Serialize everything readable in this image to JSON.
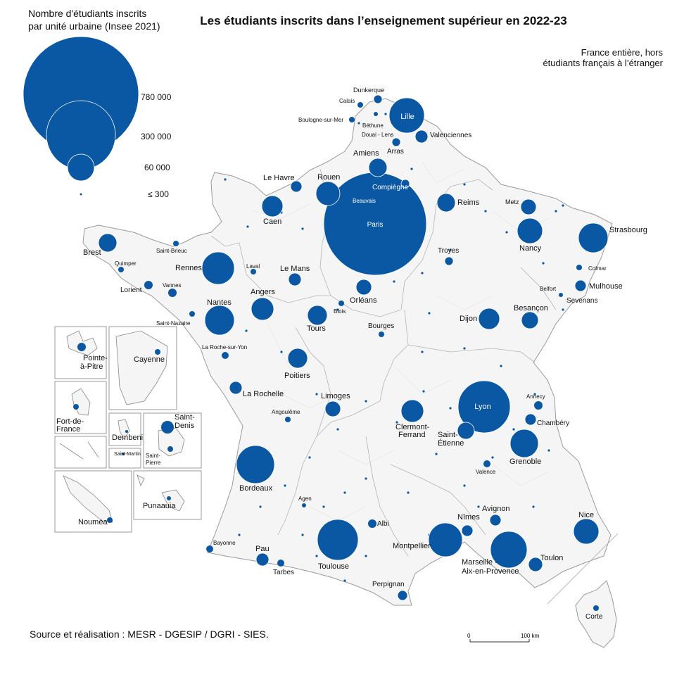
{
  "title": "Les étudiants inscrits dans l’enseignement supérieur en 2022-23",
  "scope_note": [
    "France entière, hors",
    "étudiants français à l’étranger"
  ],
  "legend": {
    "title_lines": [
      "Nombre d'étudiants inscrits",
      "par unité urbaine (Insee 2021)"
    ],
    "values": [
      "780 000",
      "300 000",
      "60 000",
      "≤ 300"
    ]
  },
  "source": "Source et réalisation : MESR - DGESIP / DGRI - SIES.",
  "scale": {
    "zero": "0",
    "distance": "100 km"
  },
  "colors": {
    "bubble": "#0a57a3",
    "land": "#f5f5f5",
    "border": "#9a9a9a"
  },
  "cities": [
    {
      "name": "Paris"
    },
    {
      "name": "Lyon"
    },
    {
      "name": "Toulouse"
    },
    {
      "name": "Lille"
    },
    {
      "name": "Marseille - Aix-en-Provence"
    },
    {
      "name": "Bordeaux"
    },
    {
      "name": "Montpellier"
    },
    {
      "name": "Nantes"
    },
    {
      "name": "Rennes"
    },
    {
      "name": "Strasbourg"
    },
    {
      "name": "Grenoble"
    },
    {
      "name": "Nancy"
    },
    {
      "name": "Nice"
    },
    {
      "name": "Rouen"
    },
    {
      "name": "Angers"
    },
    {
      "name": "Clermont-Ferrand"
    },
    {
      "name": "Dijon"
    },
    {
      "name": "Tours"
    },
    {
      "name": "Caen"
    },
    {
      "name": "Poitiers"
    },
    {
      "name": "Amiens"
    },
    {
      "name": "Reims"
    },
    {
      "name": "Saint-Étienne"
    },
    {
      "name": "Orléans"
    },
    {
      "name": "Limoges"
    },
    {
      "name": "Brest"
    },
    {
      "name": "Besançon"
    },
    {
      "name": "Metz"
    },
    {
      "name": "Mulhouse"
    },
    {
      "name": "Toulon"
    },
    {
      "name": "Pau"
    },
    {
      "name": "Perpignan"
    },
    {
      "name": "Le Mans"
    },
    {
      "name": "Avignon"
    },
    {
      "name": "Nîmes"
    },
    {
      "name": "La Rochelle"
    },
    {
      "name": "Le Havre"
    },
    {
      "name": "Valenciennes"
    },
    {
      "name": "Chambéry"
    },
    {
      "name": "Troyes"
    },
    {
      "name": "Compiègne"
    },
    {
      "name": "Beauvais"
    },
    {
      "name": "Arras"
    },
    {
      "name": "Dunkerque"
    },
    {
      "name": "Calais"
    },
    {
      "name": "Boulogne-sur-Mer"
    },
    {
      "name": "Béthune"
    },
    {
      "name": "Douai - Lens"
    },
    {
      "name": "Saint-Brieuc"
    },
    {
      "name": "Quimper"
    },
    {
      "name": "Lorient"
    },
    {
      "name": "Vannes"
    },
    {
      "name": "Saint-Nazaire"
    },
    {
      "name": "La Roche-sur-Yon"
    },
    {
      "name": "Laval"
    },
    {
      "name": "Blois"
    },
    {
      "name": "Bourges"
    },
    {
      "name": "Angoulême"
    },
    {
      "name": "Agen"
    },
    {
      "name": "Albi"
    },
    {
      "name": "Bayonne"
    },
    {
      "name": "Tarbes"
    },
    {
      "name": "Valence"
    },
    {
      "name": "Annecy"
    },
    {
      "name": "Colmar"
    },
    {
      "name": "Belfort"
    },
    {
      "name": "Sevenans"
    },
    {
      "name": "Corte"
    }
  ],
  "insets": {
    "guadeloupe": "Pointe-à-Pitre",
    "guyane": "Cayenne",
    "martinique": "Fort-de-France",
    "mayotte": "Dembeni",
    "saint_martin": "Saint-Martin",
    "reunion_north": "Saint-Denis",
    "reunion_south": "Saint-Pierre",
    "nouvelle_caledonie": "Nouméa",
    "polynesie": "Punaauia"
  }
}
